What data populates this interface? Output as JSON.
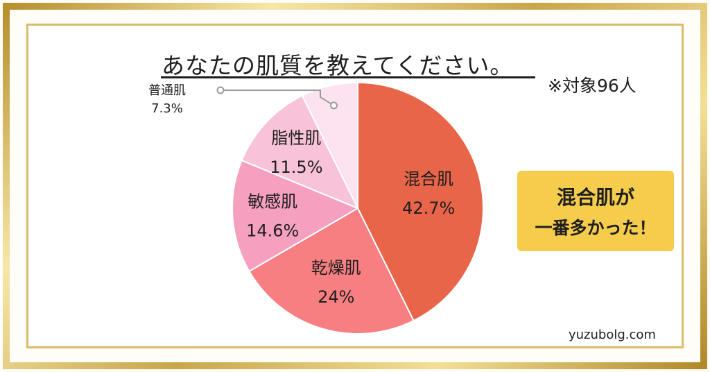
{
  "title": "あなたの肌質を教えてください。",
  "note": "※対象96人",
  "callout": {
    "line1": "混合肌が",
    "line2": "一番多かった！"
  },
  "watermark": "yuzubolg.com",
  "colors": {
    "frame_gold": "#c9a54a",
    "callout_bg": "#f5cc4c",
    "slice_combination": "#e8654a",
    "slice_dry": "#f77f82",
    "slice_sensitive": "#f5a0bf",
    "slice_oily": "#f8c3d8",
    "slice_normal": "#fde2ef"
  },
  "chart_data": {
    "type": "pie",
    "title": "あなたの肌質を教えてください。",
    "slices": [
      {
        "label": "混合肌",
        "value": 42.7,
        "value_label": "42.7%",
        "color": "#e8654a"
      },
      {
        "label": "乾燥肌",
        "value": 24,
        "value_label": "24%",
        "color": "#f77f82"
      },
      {
        "label": "敏感肌",
        "value": 14.6,
        "value_label": "14.6%",
        "color": "#f5a0bf"
      },
      {
        "label": "脂性肌",
        "value": 11.5,
        "value_label": "11.5%",
        "color": "#f8c3d8"
      },
      {
        "label": "普通肌",
        "value": 7.3,
        "value_label": "7.3%",
        "color": "#fde2ef"
      }
    ],
    "start_angle": "12 o'clock",
    "direction": "clockwise",
    "external_label_slice": "普通肌"
  }
}
